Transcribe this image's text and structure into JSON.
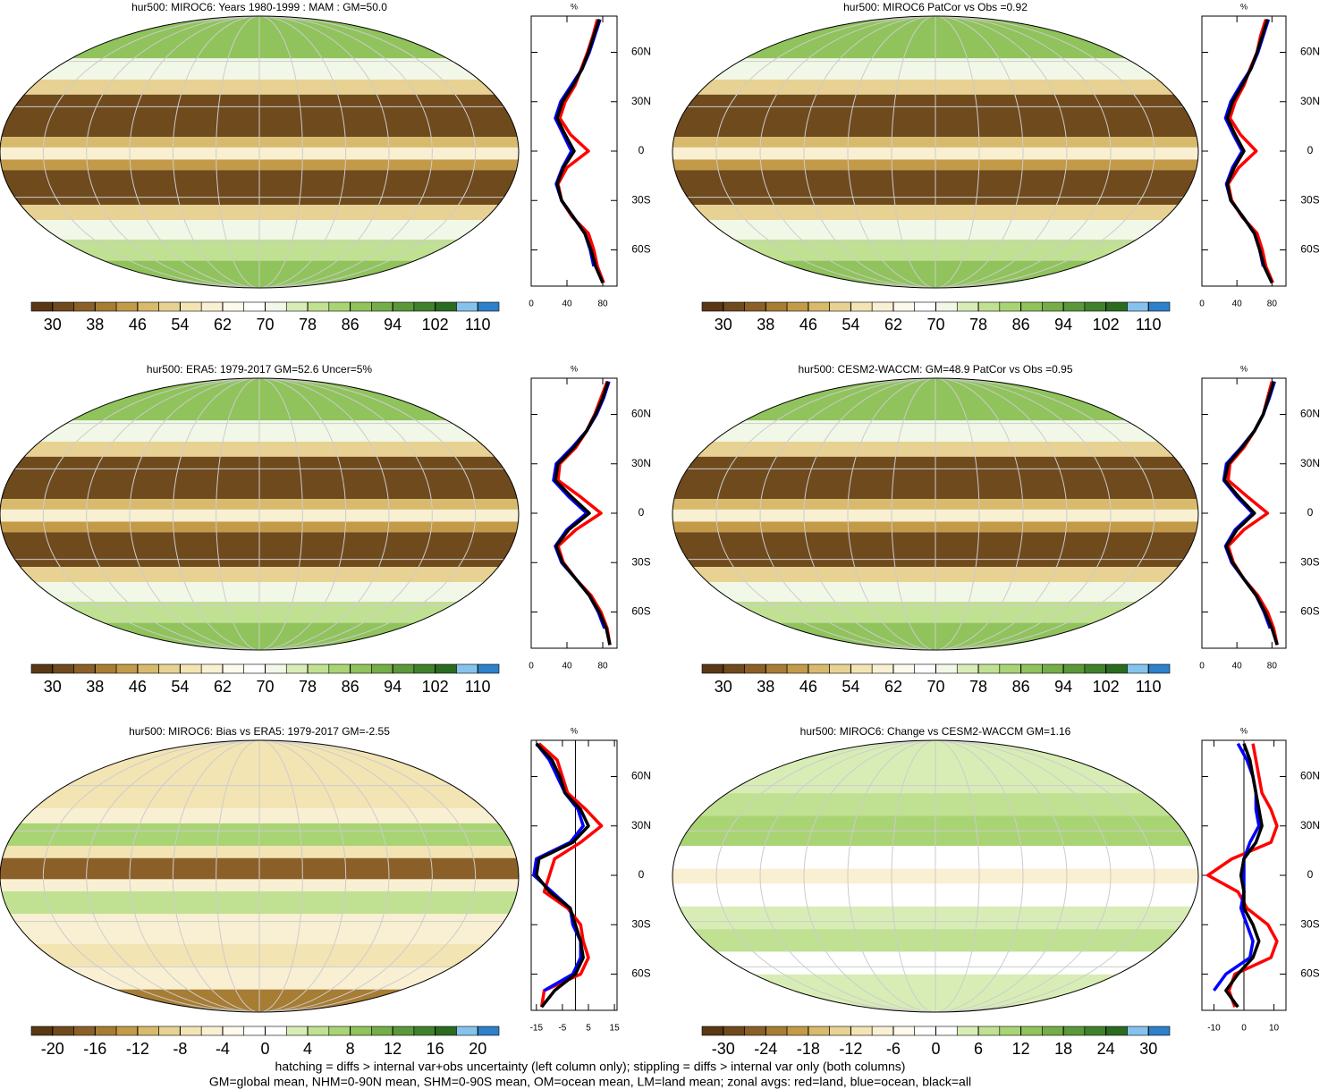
{
  "chart_data": [
    {
      "type": "map",
      "title": "hur500: MIROC6: Years 1980-1999 : MAM : GM=50.0",
      "cbticks": [
        30,
        38,
        46,
        54,
        62,
        70,
        78,
        86,
        94,
        102,
        110
      ],
      "cblim": [
        26,
        114
      ],
      "colors": [
        "#5a3814",
        "#6f4a1d",
        "#8b6028",
        "#a77c33",
        "#c39b48",
        "#d8ba6d",
        "#e8d293",
        "#f3e4b4",
        "#f9f0d3",
        "#fdf9ec",
        "#ffffff",
        "#f2f8e8",
        "#d8edb6",
        "#c0e192",
        "#a9d474",
        "#90c35c",
        "#75ad49",
        "#5b9839",
        "#41812c",
        "#2a6b20",
        "#86c3ec",
        "#2d80c9"
      ]
    },
    {
      "type": "zonal-line",
      "xlabel": "%",
      "xlim": [
        0,
        96
      ],
      "xticks": [
        0,
        40,
        80
      ],
      "ylim": [
        -82,
        82
      ],
      "yticks": [
        {
          "value": 60,
          "label": "60N"
        },
        {
          "value": 30,
          "label": "30N"
        },
        0,
        {
          "value": -30,
          "label": "30S"
        },
        {
          "value": -60,
          "label": "60S"
        }
      ],
      "y": [
        80,
        70,
        60,
        50,
        40,
        30,
        20,
        10,
        0,
        -10,
        -20,
        -30,
        -40,
        -50,
        -60,
        -70,
        -80
      ],
      "series": [
        {
          "color": "#ff0000",
          "values": [
            74,
            69,
            63,
            56,
            49,
            38,
            32,
            44,
            64,
            40,
            30,
            34,
            46,
            64,
            70,
            74,
            81
          ]
        },
        {
          "color": "#0000ff",
          "values": [
            77,
            71,
            65,
            57,
            45,
            33,
            27,
            36,
            45,
            35,
            28,
            34,
            47,
            60,
            66,
            70,
            null
          ]
        },
        {
          "color": "#000000",
          "values": [
            76,
            70,
            64,
            57,
            47,
            35,
            29,
            38,
            48,
            36,
            29,
            34,
            47,
            60,
            67,
            72,
            80
          ]
        }
      ]
    },
    {
      "type": "map",
      "title": "hur500: MIROC6 PatCor vs Obs =0.92",
      "cbticks": [
        30,
        38,
        46,
        54,
        62,
        70,
        78,
        86,
        94,
        102,
        110
      ],
      "cblim": [
        26,
        114
      ],
      "colors": [
        "#5a3814",
        "#6f4a1d",
        "#8b6028",
        "#a77c33",
        "#c39b48",
        "#d8ba6d",
        "#e8d293",
        "#f3e4b4",
        "#f9f0d3",
        "#fdf9ec",
        "#ffffff",
        "#f2f8e8",
        "#d8edb6",
        "#c0e192",
        "#a9d474",
        "#90c35c",
        "#75ad49",
        "#5b9839",
        "#41812c",
        "#2a6b20",
        "#86c3ec",
        "#2d80c9"
      ]
    },
    {
      "type": "zonal-line",
      "xlabel": "%",
      "xlim": [
        0,
        96
      ],
      "xticks": [
        0,
        40,
        80
      ],
      "ylim": [
        -82,
        82
      ],
      "yticks": [
        {
          "value": 60,
          "label": "60N"
        },
        {
          "value": 30,
          "label": "30N"
        },
        0,
        {
          "value": -30,
          "label": "30S"
        },
        {
          "value": -60,
          "label": "60S"
        }
      ],
      "y": [
        80,
        70,
        60,
        50,
        40,
        30,
        20,
        10,
        0,
        -10,
        -20,
        -30,
        -40,
        -50,
        -60,
        -70,
        -80
      ],
      "series": [
        {
          "color": "#ff0000",
          "values": [
            73,
            67,
            63,
            55,
            48,
            38,
            32,
            44,
            62,
            42,
            30,
            34,
            46,
            63,
            69,
            73,
            81
          ]
        },
        {
          "color": "#0000ff",
          "values": [
            76,
            70,
            64,
            56,
            44,
            33,
            27,
            36,
            46,
            35,
            28,
            33,
            47,
            60,
            66,
            70,
            null
          ]
        },
        {
          "color": "#000000",
          "values": [
            75,
            69,
            63,
            56,
            46,
            35,
            29,
            38,
            48,
            37,
            29,
            33,
            47,
            60,
            66,
            71,
            80
          ]
        }
      ]
    },
    {
      "type": "map",
      "title": "hur500: ERA5: 1979-2017 GM=52.6 Uncer=5%",
      "cbticks": [
        30,
        38,
        46,
        54,
        62,
        70,
        78,
        86,
        94,
        102,
        110
      ],
      "cblim": [
        26,
        114
      ],
      "colors": [
        "#5a3814",
        "#6f4a1d",
        "#8b6028",
        "#a77c33",
        "#c39b48",
        "#d8ba6d",
        "#e8d293",
        "#f3e4b4",
        "#f9f0d3",
        "#fdf9ec",
        "#ffffff",
        "#f2f8e8",
        "#d8edb6",
        "#c0e192",
        "#a9d474",
        "#90c35c",
        "#75ad49",
        "#5b9839",
        "#41812c",
        "#2a6b20",
        "#86c3ec",
        "#2d80c9"
      ]
    },
    {
      "type": "zonal-line",
      "xlabel": "%",
      "xlim": [
        0,
        96
      ],
      "xticks": [
        0,
        40,
        80
      ],
      "ylim": [
        -82,
        82
      ],
      "yticks": [
        {
          "value": 60,
          "label": "60N"
        },
        {
          "value": 30,
          "label": "30N"
        },
        0,
        {
          "value": -30,
          "label": "30S"
        },
        {
          "value": -60,
          "label": "60S"
        }
      ],
      "y": [
        80,
        70,
        60,
        50,
        40,
        30,
        20,
        10,
        0,
        -10,
        -20,
        -30,
        -40,
        -50,
        -60,
        -70,
        -80
      ],
      "series": [
        {
          "color": "#ff0000",
          "values": [
            85,
            78,
            71,
            62,
            50,
            32,
            30,
            55,
            78,
            50,
            30,
            36,
            50,
            67,
            78,
            85,
            88
          ]
        },
        {
          "color": "#0000ff",
          "values": [
            87,
            81,
            73,
            62,
            46,
            28,
            25,
            42,
            62,
            40,
            27,
            34,
            50,
            65,
            75,
            82,
            null
          ]
        },
        {
          "color": "#000000",
          "values": [
            86,
            80,
            72,
            62,
            48,
            30,
            27,
            45,
            65,
            42,
            28,
            35,
            50,
            65,
            76,
            84,
            88
          ]
        }
      ]
    },
    {
      "type": "map",
      "title": "hur500: CESM2-WACCM: GM=48.9 PatCor vs Obs =0.95",
      "cbticks": [
        30,
        38,
        46,
        54,
        62,
        70,
        78,
        86,
        94,
        102,
        110
      ],
      "cblim": [
        26,
        114
      ],
      "colors": [
        "#5a3814",
        "#6f4a1d",
        "#8b6028",
        "#a77c33",
        "#c39b48",
        "#d8ba6d",
        "#e8d293",
        "#f3e4b4",
        "#f9f0d3",
        "#fdf9ec",
        "#ffffff",
        "#f2f8e8",
        "#d8edb6",
        "#c0e192",
        "#a9d474",
        "#90c35c",
        "#75ad49",
        "#5b9839",
        "#41812c",
        "#2a6b20",
        "#86c3ec",
        "#2d80c9"
      ]
    },
    {
      "type": "zonal-line",
      "xlabel": "%",
      "xlim": [
        0,
        96
      ],
      "xticks": [
        0,
        40,
        80
      ],
      "ylim": [
        -82,
        82
      ],
      "yticks": [
        {
          "value": 60,
          "label": "60N"
        },
        {
          "value": 30,
          "label": "30N"
        },
        0,
        {
          "value": -30,
          "label": "30S"
        },
        {
          "value": -60,
          "label": "60S"
        }
      ],
      "y": [
        80,
        70,
        60,
        50,
        40,
        30,
        20,
        10,
        0,
        -10,
        -20,
        -30,
        -40,
        -50,
        -60,
        -70,
        -80
      ],
      "series": [
        {
          "color": "#ff0000",
          "values": [
            80,
            75,
            70,
            60,
            48,
            32,
            30,
            52,
            75,
            48,
            30,
            36,
            48,
            64,
            75,
            82,
            86
          ]
        },
        {
          "color": "#0000ff",
          "values": [
            83,
            77,
            70,
            60,
            45,
            28,
            25,
            40,
            58,
            38,
            27,
            34,
            48,
            62,
            71,
            78,
            null
          ]
        },
        {
          "color": "#000000",
          "values": [
            82,
            76,
            70,
            60,
            46,
            30,
            26,
            42,
            60,
            40,
            28,
            35,
            48,
            62,
            72,
            80,
            86
          ]
        }
      ]
    },
    {
      "type": "map",
      "title": "hur500: MIROC6: Bias vs ERA5: 1979-2017 GM=-2.55",
      "cbticks": [
        -20,
        -16,
        -12,
        -8,
        -4,
        0,
        4,
        8,
        12,
        16,
        20
      ],
      "cblim": [
        -22,
        22
      ],
      "colors": [
        "#5a3814",
        "#6f4a1d",
        "#8b6028",
        "#a77c33",
        "#c39b48",
        "#d8ba6d",
        "#e8d293",
        "#f3e4b4",
        "#f9f0d3",
        "#fdf9ec",
        "#ffffff",
        "#ffffff",
        "#d8edb6",
        "#c0e192",
        "#a9d474",
        "#90c35c",
        "#75ad49",
        "#5b9839",
        "#41812c",
        "#2a6b20",
        "#86c3ec",
        "#2d80c9"
      ]
    },
    {
      "type": "zonal-line",
      "xlabel": "%",
      "xlim": [
        -17,
        16
      ],
      "xticks": [
        -15,
        -5,
        5,
        15
      ],
      "ylim": [
        -82,
        82
      ],
      "yticks": [
        {
          "value": 60,
          "label": "60N"
        },
        {
          "value": 30,
          "label": "30N"
        },
        0,
        {
          "value": -30,
          "label": "30S"
        },
        {
          "value": -60,
          "label": "60S"
        }
      ],
      "y": [
        80,
        70,
        60,
        50,
        40,
        30,
        20,
        10,
        0,
        -10,
        -20,
        -30,
        -40,
        -50,
        -60,
        -70,
        -80
      ],
      "series": [
        {
          "color": "#ff0000",
          "values": [
            -14,
            -7,
            -5,
            -3,
            4,
            10,
            2,
            -8,
            -10,
            -12,
            -3,
            2,
            3,
            5,
            2,
            -12,
            -13
          ]
        },
        {
          "color": "#0000ff",
          "values": [
            -15,
            -10,
            -7,
            -4,
            1,
            3,
            -2,
            -15,
            -16,
            -9,
            -2,
            -1,
            2,
            2,
            -1,
            -12,
            null
          ]
        },
        {
          "color": "#000000",
          "values": [
            -15,
            -9,
            -6,
            -4,
            2,
            5,
            -1,
            -14,
            -15,
            -10,
            -2,
            0,
            2,
            3,
            0,
            -8,
            -13
          ]
        }
      ]
    },
    {
      "type": "map",
      "title": "hur500: MIROC6: Change vs CESM2-WACCM GM=1.16",
      "cbticks": [
        -30,
        -24,
        -18,
        -12,
        -6,
        0,
        6,
        12,
        18,
        24,
        30
      ],
      "cblim": [
        -33,
        33
      ],
      "colors": [
        "#5a3814",
        "#6f4a1d",
        "#8b6028",
        "#a77c33",
        "#c39b48",
        "#d8ba6d",
        "#e8d293",
        "#f3e4b4",
        "#f9f0d3",
        "#fdf9ec",
        "#ffffff",
        "#ffffff",
        "#d8edb6",
        "#c0e192",
        "#a9d474",
        "#90c35c",
        "#75ad49",
        "#5b9839",
        "#41812c",
        "#2a6b20",
        "#86c3ec",
        "#2d80c9"
      ]
    },
    {
      "type": "zonal-line",
      "xlabel": "%",
      "xlim": [
        -14,
        14
      ],
      "xticks": [
        -10,
        0,
        10
      ],
      "ylim": [
        -82,
        82
      ],
      "yticks": [
        {
          "value": 60,
          "label": "60N"
        },
        {
          "value": 30,
          "label": "30N"
        },
        0,
        {
          "value": -30,
          "label": "30S"
        },
        {
          "value": -60,
          "label": "60S"
        }
      ],
      "y": [
        80,
        70,
        60,
        50,
        40,
        30,
        20,
        10,
        0,
        -10,
        -20,
        -30,
        -40,
        -50,
        -60,
        -70,
        -80
      ],
      "series": [
        {
          "color": "#ff0000",
          "values": [
            3,
            4,
            5,
            6,
            9,
            11,
            9,
            -4,
            -12,
            -2,
            1,
            8,
            11,
            9,
            -3,
            -5,
            -3
          ]
        },
        {
          "color": "#0000ff",
          "values": [
            -2,
            1,
            3,
            4,
            4,
            5,
            2,
            0,
            0,
            0,
            -1,
            1,
            3,
            2,
            -6,
            -10,
            null
          ]
        },
        {
          "color": "#000000",
          "values": [
            0,
            2,
            3,
            4,
            5,
            6,
            4,
            0,
            -1,
            0,
            0,
            3,
            5,
            3,
            -2,
            -6,
            -2
          ]
        }
      ]
    }
  ],
  "notes": [
    "hatching = diffs > internal var+obs uncertainty (left column only); stippling = diffs > internal var only (both columns)",
    "GM=global mean, NHM=0-90N mean, SHM=0-90S mean, OM=ocean mean, LM=land mean; zonal avgs: red=land, blue=ocean, black=all"
  ]
}
